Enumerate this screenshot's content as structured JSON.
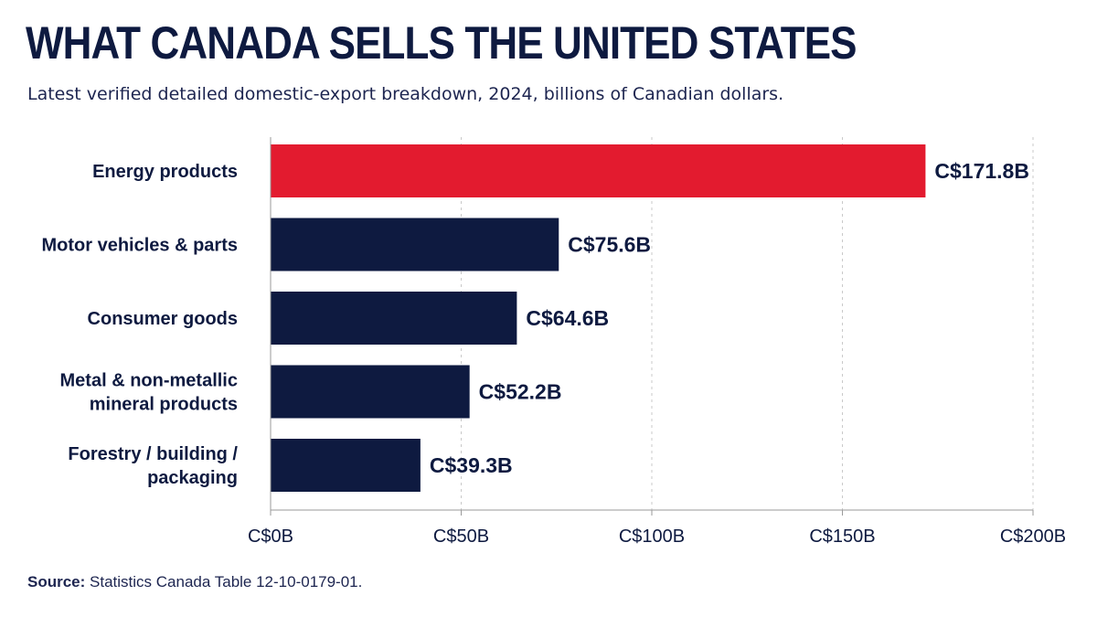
{
  "header": {
    "title": "WHAT CANADA SELLS THE UNITED STATES",
    "subtitle": "Latest verified detailed domestic-export breakdown, 2024, billions of Canadian dollars."
  },
  "footer": {
    "source_label": "Source:",
    "source_text": "Statistics Canada Table 12-10-0179-01."
  },
  "colors": {
    "highlight": "#e31b2f",
    "bar": "#0e1a40",
    "text": "#0e1a40",
    "grid": "#c9c9c9"
  },
  "chart_data": {
    "type": "bar",
    "orientation": "horizontal",
    "categories": [
      [
        "Energy products"
      ],
      [
        "Motor vehicles & parts"
      ],
      [
        "Consumer goods"
      ],
      [
        "Metal & non-metallic",
        "mineral products"
      ],
      [
        "Forestry / building /",
        "packaging"
      ]
    ],
    "values": [
      171.8,
      75.6,
      64.6,
      52.2,
      39.3
    ],
    "value_labels": [
      "C$171.8B",
      "C$75.6B",
      "C$64.6B",
      "C$52.2B",
      "C$39.3B"
    ],
    "highlight_index": 0,
    "xlim": [
      0,
      200
    ],
    "xticks": [
      0,
      50,
      100,
      150,
      200
    ],
    "xtick_labels": [
      "C$0B",
      "C$50B",
      "C$100B",
      "C$150B",
      "C$200B"
    ],
    "xlabel": "",
    "ylabel": "",
    "grid": "vertical dashed"
  }
}
